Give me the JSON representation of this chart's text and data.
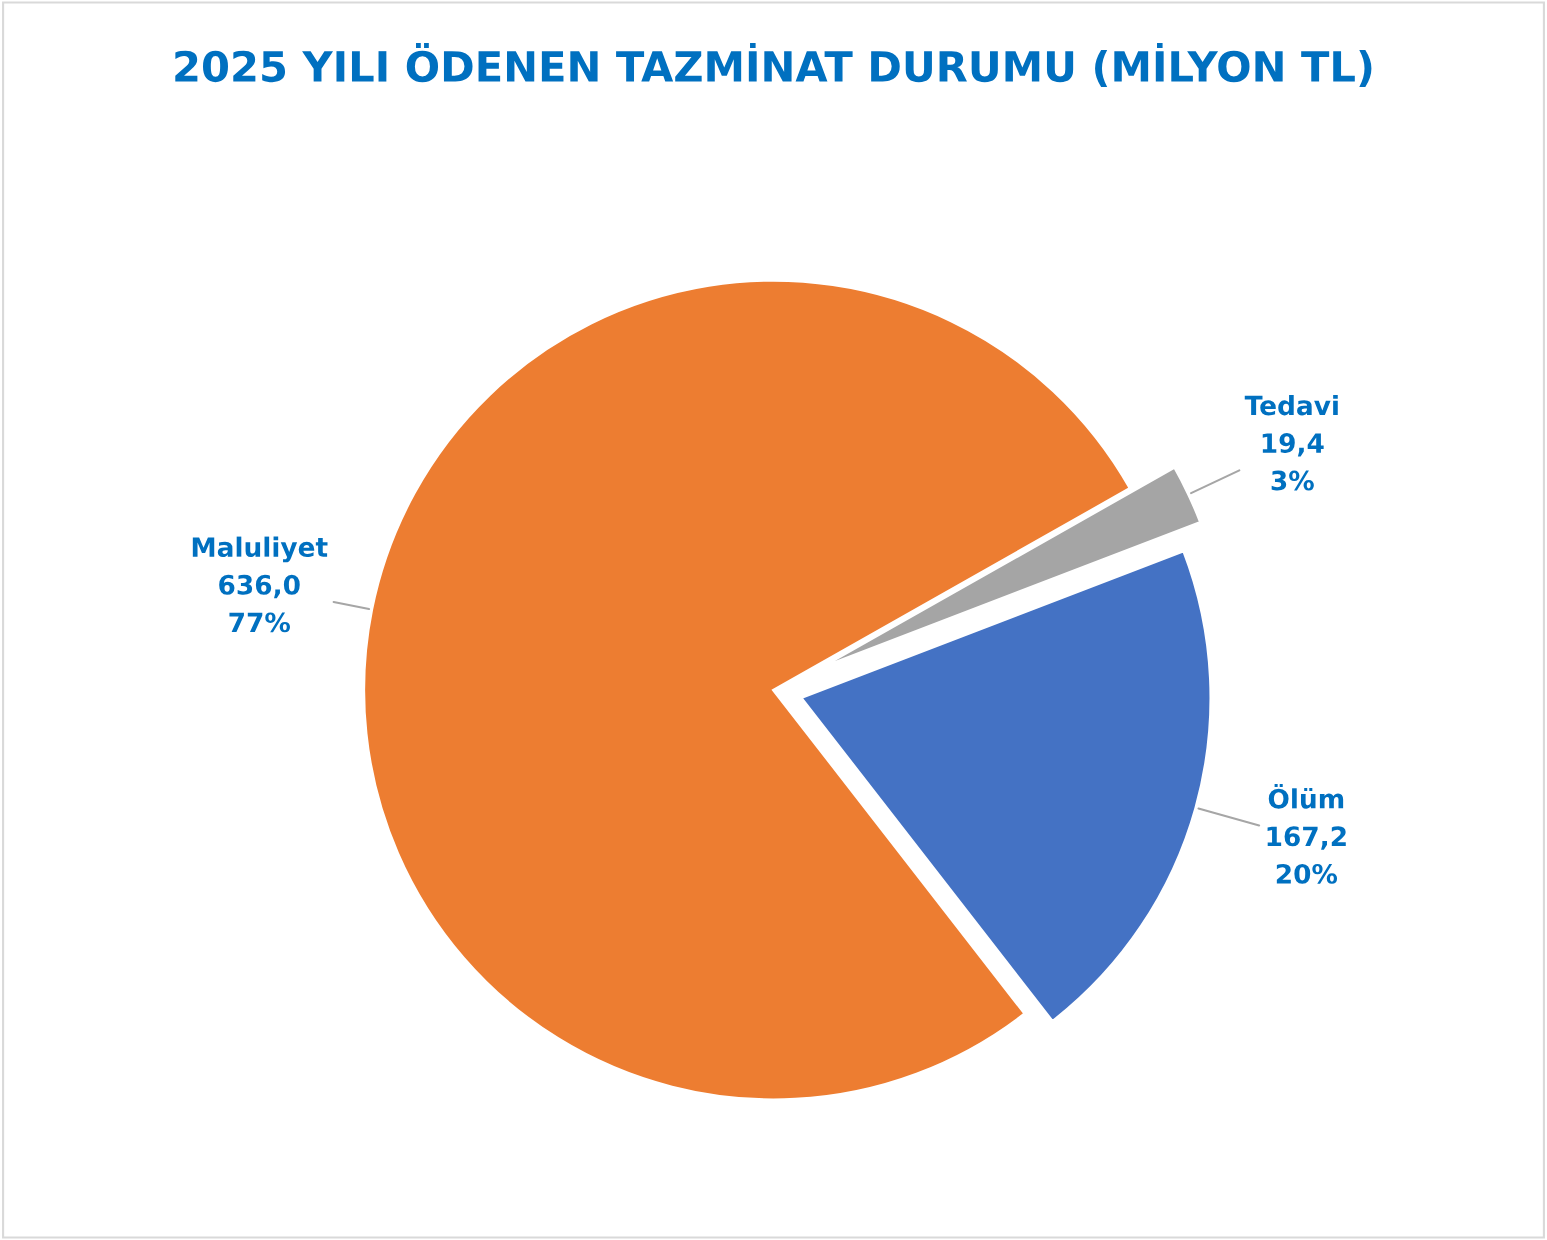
{
  "chart_data": {
    "type": "pie",
    "title": "2025 YILI ÖDENEN TAZMİNAT DURUMU (MİLYON TL)",
    "categories": [
      "Tedavi",
      "Ölüm",
      "Maluliyet"
    ],
    "values": [
      19.4,
      167.2,
      636.0
    ],
    "value_labels": [
      "19,4\n3%",
      "167,2\n20%",
      "636,0\n77%"
    ],
    "colors": [
      "#a5a5a5",
      "#4472c4",
      "#ed7d31"
    ],
    "legend": false
  }
}
